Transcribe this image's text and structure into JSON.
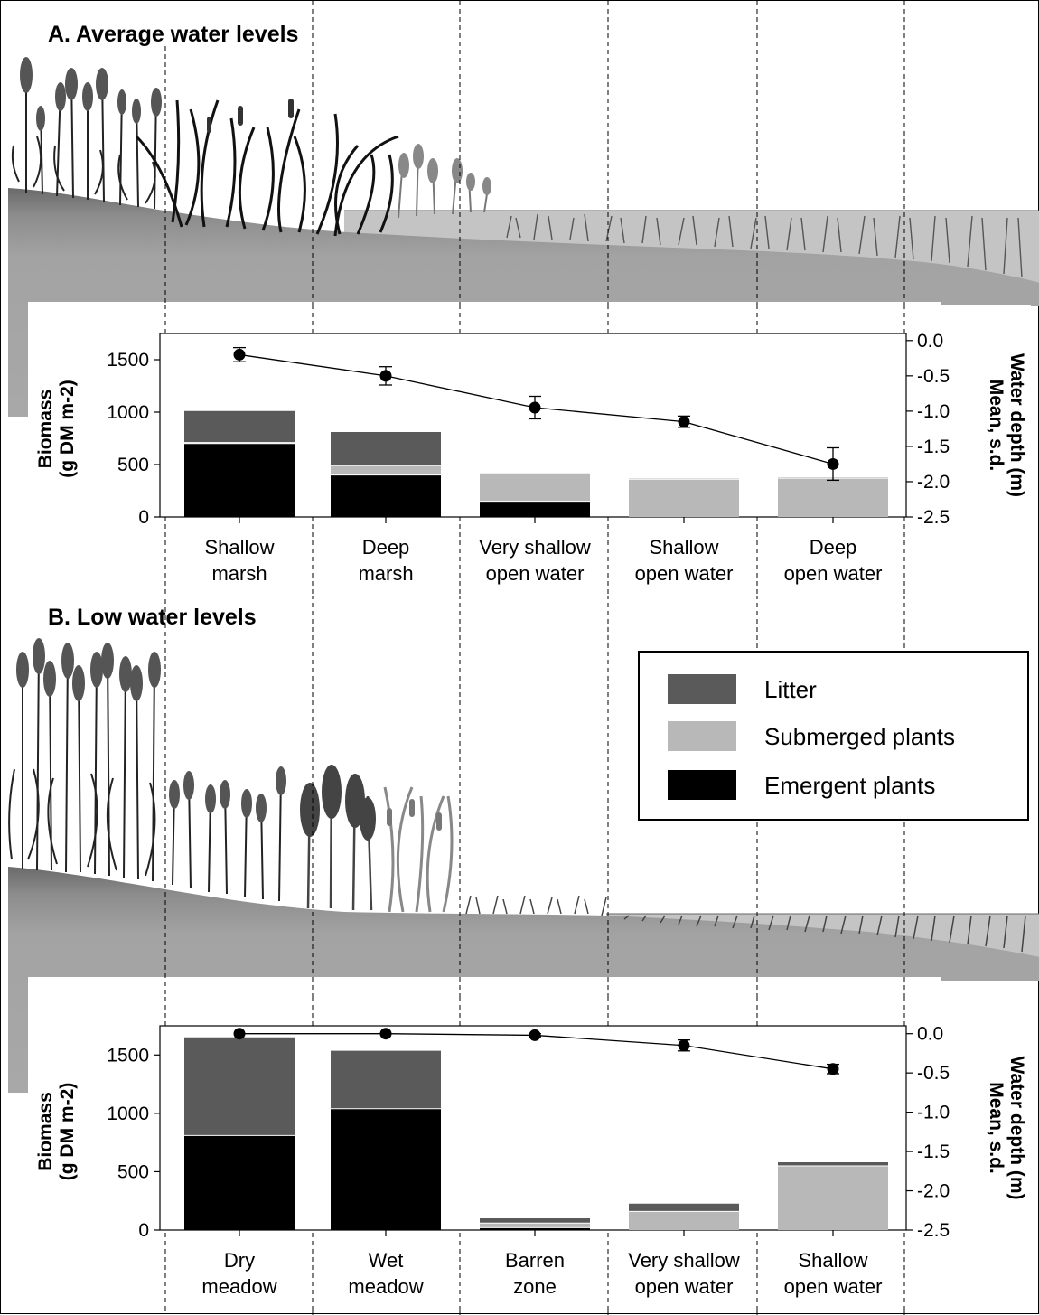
{
  "colors": {
    "litter": "#5a5a5a",
    "submerged": "#b8b8b8",
    "emergent": "#000000",
    "soil": "#a3a3a3",
    "water": "#c4c4c4"
  },
  "legend": {
    "items": [
      {
        "label": "Litter",
        "color": "#5a5a5a"
      },
      {
        "label": "Submerged plants",
        "color": "#b8b8b8"
      },
      {
        "label": "Emergent plants",
        "color": "#000000"
      }
    ]
  },
  "chart_data": [
    {
      "type": "bar",
      "panel_title": "A. Average water levels",
      "stacked": true,
      "categories": [
        [
          "Shallow",
          "marsh"
        ],
        [
          "Deep",
          "marsh"
        ],
        [
          "Very shallow",
          "open water"
        ],
        [
          "Shallow",
          "open water"
        ],
        [
          "Deep",
          "open water"
        ]
      ],
      "series": [
        {
          "name": "Emergent plants",
          "values": [
            700,
            400,
            150,
            0,
            0
          ]
        },
        {
          "name": "Submerged plants",
          "values": [
            10,
            90,
            270,
            360,
            370
          ]
        },
        {
          "name": "Litter",
          "values": [
            305,
            325,
            5,
            10,
            10
          ]
        }
      ],
      "ylabel_lines": [
        "Biomass",
        "(g DM m-2)"
      ],
      "ylim": [
        0,
        1750
      ],
      "yticks": [
        0,
        500,
        1000,
        1500
      ],
      "ytick_labels": [
        "0",
        "500",
        "1000",
        "1500"
      ],
      "y2label_lines": [
        "Water depth (m)",
        "Mean, s.d."
      ],
      "y2lim": [
        -2.5,
        0.1
      ],
      "y2ticks": [
        0.0,
        -0.5,
        -1.0,
        -1.5,
        -2.0,
        -2.5
      ],
      "y2tick_labels": [
        "0.0",
        "-0.5",
        "-1.0",
        "-1.5",
        "-2.0",
        "-2.5"
      ],
      "water_depth": {
        "mean": [
          -0.2,
          -0.5,
          -0.95,
          -1.15,
          -1.75
        ],
        "sd": [
          0.1,
          0.13,
          0.16,
          0.08,
          0.23
        ]
      },
      "grid": false
    },
    {
      "type": "bar",
      "panel_title": "B. Low water levels",
      "stacked": true,
      "categories": [
        [
          "Dry",
          "meadow"
        ],
        [
          "Wet",
          "meadow"
        ],
        [
          "Barren",
          "zone"
        ],
        [
          "Very shallow",
          "open water"
        ],
        [
          "Shallow",
          "open water"
        ]
      ],
      "series": [
        {
          "name": "Emergent plants",
          "values": [
            810,
            1040,
            20,
            0,
            0
          ]
        },
        {
          "name": "Submerged plants",
          "values": [
            0,
            0,
            40,
            160,
            550
          ]
        },
        {
          "name": "Litter",
          "values": [
            845,
            500,
            45,
            70,
            35
          ]
        }
      ],
      "ylabel_lines": [
        "Biomass",
        "(g DM m-2)"
      ],
      "ylim": [
        0,
        1750
      ],
      "yticks": [
        0,
        500,
        1000,
        1500
      ],
      "ytick_labels": [
        "0",
        "500",
        "1000",
        "1500"
      ],
      "y2label_lines": [
        "Water depth (m)",
        "Mean, s.d."
      ],
      "y2lim": [
        -2.5,
        0.1
      ],
      "y2ticks": [
        0.0,
        -0.5,
        -1.0,
        -1.5,
        -2.0,
        -2.5
      ],
      "y2tick_labels": [
        "0.0",
        "-0.5",
        "-1.0",
        "-1.5",
        "-2.0",
        "-2.5"
      ],
      "water_depth": {
        "mean": [
          0.0,
          0.0,
          -0.02,
          -0.15,
          -0.45
        ],
        "sd": [
          0,
          0,
          0.02,
          0.07,
          0.06
        ]
      },
      "grid": false
    }
  ]
}
